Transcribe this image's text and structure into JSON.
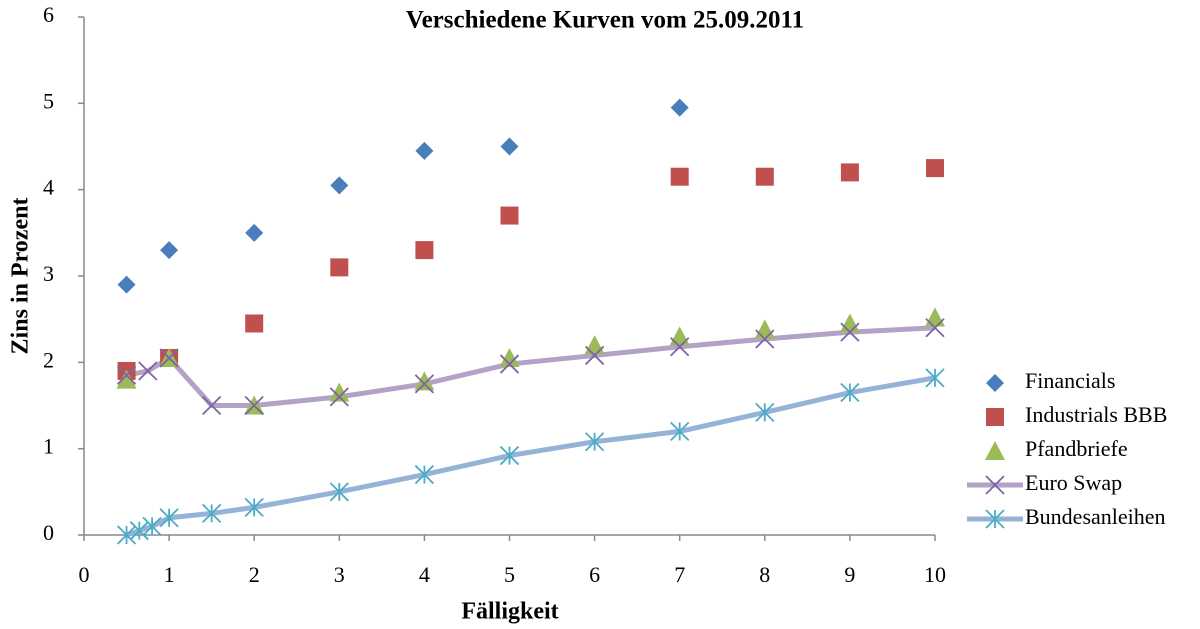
{
  "chart_data": {
    "type": "line",
    "title": "Verschiedene Kurven vom 25.09.2011",
    "x_label": "Fälligkeit",
    "y_label": "Zins in Prozent",
    "xlim": [
      0,
      10
    ],
    "xticks": [
      0,
      1,
      2,
      3,
      4,
      5,
      6,
      7,
      8,
      9,
      10
    ],
    "ylim": [
      0,
      6
    ],
    "yticks": [
      0,
      1,
      2,
      3,
      4,
      5,
      6
    ],
    "grid": false,
    "legend": "right",
    "series": [
      {
        "name": "Financials",
        "color": "#4a7ebb",
        "marker": "diamond",
        "line": false,
        "x": [
          0.5,
          1,
          2,
          3,
          4,
          5,
          7
        ],
        "values": [
          2.9,
          3.3,
          3.5,
          4.05,
          4.45,
          4.5,
          4.95
        ]
      },
      {
        "name": "Industrials BBB",
        "color": "#c0504d",
        "marker": "square",
        "line": false,
        "x": [
          0.5,
          1,
          2,
          3,
          4,
          5,
          7,
          8,
          9,
          10
        ],
        "values": [
          1.9,
          2.05,
          2.45,
          3.1,
          3.3,
          3.7,
          4.15,
          4.15,
          4.2,
          4.25
        ]
      },
      {
        "name": "Pfandbriefe",
        "color": "#9bbb59",
        "marker": "triangle",
        "line": false,
        "x": [
          0.5,
          1,
          2,
          3,
          4,
          5,
          6,
          7,
          8,
          9,
          10
        ],
        "values": [
          1.8,
          2.05,
          1.5,
          1.65,
          1.78,
          2.05,
          2.2,
          2.3,
          2.38,
          2.45,
          2.52
        ]
      },
      {
        "name": "Euro Swap",
        "color": "#8064a2",
        "line_color": "#b3a2c7",
        "marker": "x",
        "line": true,
        "x": [
          0.5,
          0.75,
          1,
          1.5,
          2,
          3,
          4,
          5,
          6,
          7,
          8,
          9,
          10
        ],
        "values": [
          1.85,
          1.9,
          2.05,
          1.5,
          1.5,
          1.6,
          1.75,
          1.98,
          2.08,
          2.18,
          2.27,
          2.35,
          2.4
        ]
      },
      {
        "name": "Bundesanleihen",
        "color": "#4bacc6",
        "line_color": "#95b3d7",
        "marker": "star",
        "line": true,
        "x": [
          0.5,
          0.65,
          0.8,
          1,
          1.5,
          2,
          3,
          4,
          5,
          6,
          7,
          8,
          9,
          10
        ],
        "values": [
          0,
          0.05,
          0.1,
          0.2,
          0.25,
          0.32,
          0.5,
          0.7,
          0.92,
          1.08,
          1.2,
          1.42,
          1.65,
          1.82
        ]
      }
    ]
  }
}
